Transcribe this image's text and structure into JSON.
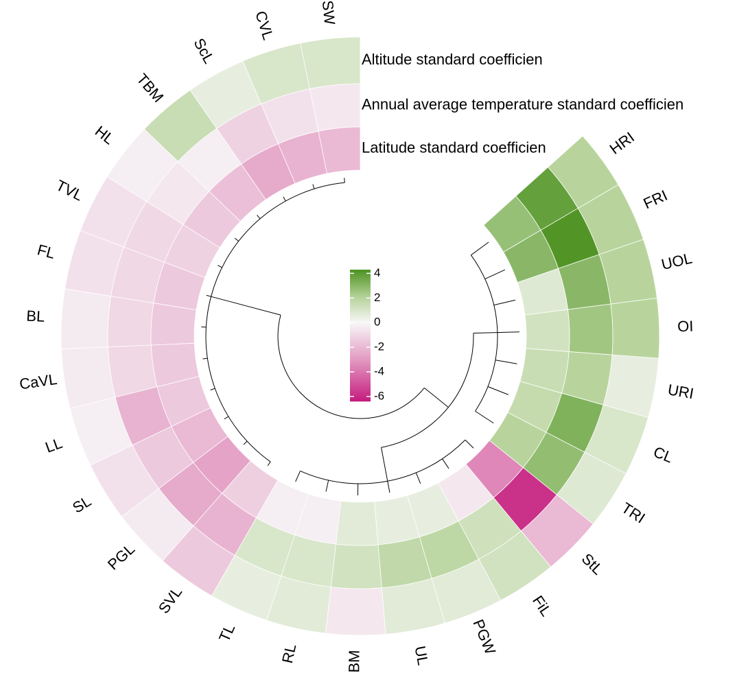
{
  "chart_data": {
    "type": "circular_heatmap",
    "categories": [
      "SW",
      "CVL",
      "ScL",
      "TBM",
      "HL",
      "TVL",
      "FL",
      "BL",
      "CaVL",
      "LL",
      "SL",
      "PGL",
      "SVL",
      "TL",
      "RL",
      "BM",
      "UL",
      "PGW",
      "FiL",
      "StL",
      "TRI",
      "CL",
      "URI",
      "OI",
      "UOL",
      "FRI",
      "HRI"
    ],
    "series": [
      {
        "name": "Altitude standard coefficien",
        "values": [
          1,
          1,
          0.5,
          1.5,
          -0.3,
          -0.7,
          -0.7,
          -0.4,
          -0.4,
          -0.3,
          -0.7,
          -0.4,
          -1.5,
          0.5,
          0.7,
          -0.5,
          0.7,
          0.7,
          1.2,
          -2,
          0.8,
          1,
          0.5,
          2,
          2,
          2,
          2
        ]
      },
      {
        "name": "Annual average temperature standard coefficien",
        "values": [
          -0.5,
          -0.7,
          -1.2,
          -0.3,
          -0.5,
          -1,
          -1,
          -1,
          -1,
          -2.2,
          -1.5,
          -2.5,
          -2.2,
          1,
          1,
          1.2,
          1.7,
          1.8,
          1.3,
          -5.8,
          2.8,
          3.2,
          2,
          2.5,
          3,
          4.2,
          3.8
        ]
      },
      {
        "name": "Latitude standard coefficien",
        "values": [
          -2,
          -2.2,
          -2.5,
          -1.8,
          -1.5,
          -1.2,
          -1.5,
          -1.5,
          -1.5,
          -1.5,
          -2,
          -2.7,
          -1.3,
          -0.3,
          -0.3,
          0.7,
          0.5,
          0.5,
          -0.5,
          -3.5,
          2,
          1.6,
          1.5,
          1.2,
          0.8,
          3,
          2.7
        ]
      }
    ],
    "colorbar": {
      "lim": [
        -6.4,
        4.3
      ],
      "ticks": [
        4,
        2,
        0,
        -2,
        -4,
        -6
      ],
      "stops": [
        {
          "value": -6.4,
          "color": "#c51b7d"
        },
        {
          "value": -3,
          "color": "#e39ac2"
        },
        {
          "value": 0,
          "color": "#f7f7f7"
        },
        {
          "value": 2,
          "color": "#b8d49c"
        },
        {
          "value": 4.3,
          "color": "#4d9221"
        }
      ]
    }
  }
}
